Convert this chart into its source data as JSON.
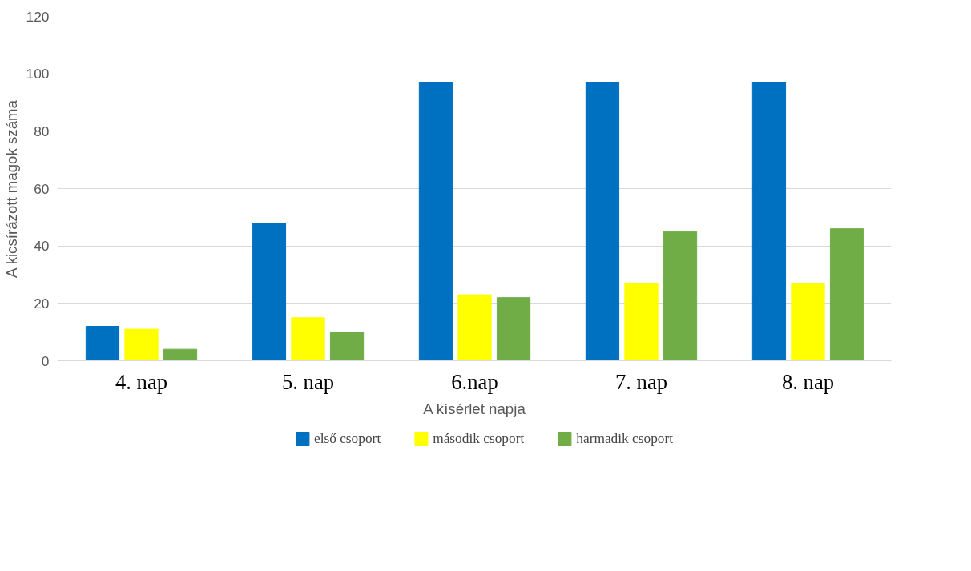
{
  "chart_data": {
    "type": "bar",
    "xlabel": "A kísérlet napja",
    "ylabel": "A kicsírázott magok száma",
    "categories": [
      "4. nap",
      "5. nap",
      "6.nap",
      "7. nap",
      "8. nap"
    ],
    "series": [
      {
        "name": "első csoport",
        "color": "#0070c0",
        "values": [
          12,
          48,
          97,
          97,
          97
        ]
      },
      {
        "name": "második csoport",
        "color": "#ffff00",
        "values": [
          11,
          15,
          23,
          27,
          27
        ]
      },
      {
        "name": "harmadik csoport",
        "color": "#70ad47",
        "values": [
          4,
          10,
          22,
          45,
          46
        ]
      }
    ],
    "ylim": [
      0,
      120
    ],
    "yticks": [
      0,
      20,
      40,
      60,
      80,
      100,
      120
    ],
    "grid": "y",
    "legend": "bottom"
  }
}
